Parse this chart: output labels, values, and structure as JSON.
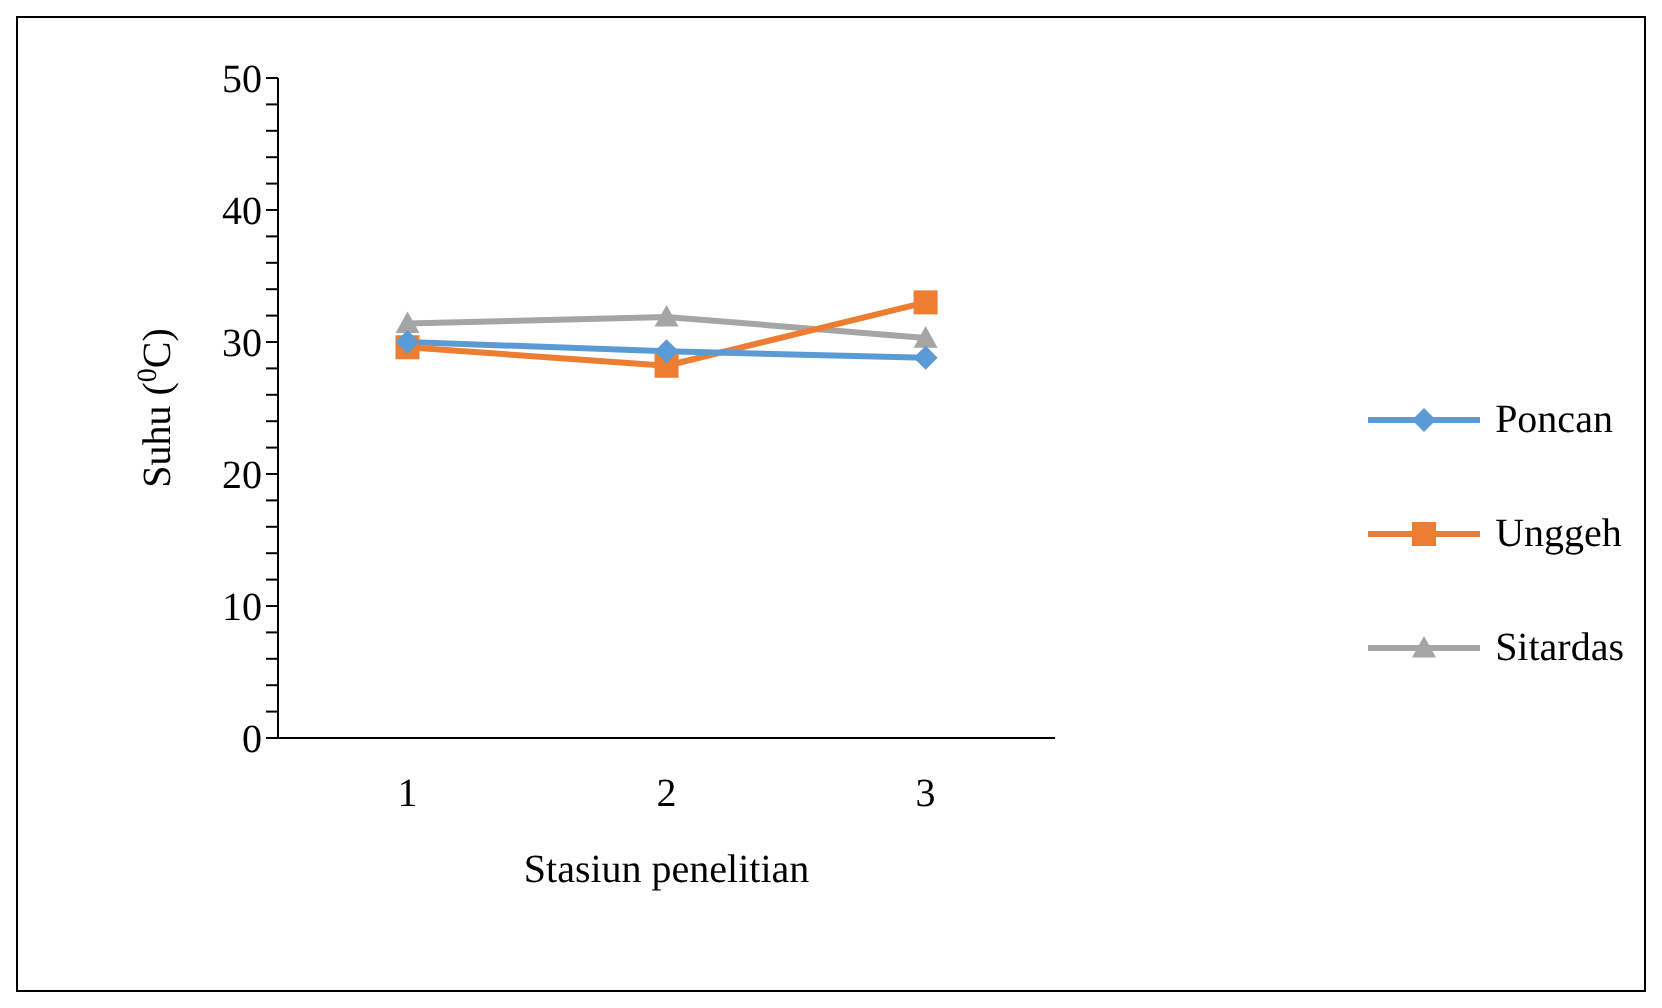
{
  "chart_data": {
    "type": "line",
    "xlabel": "Stasiun penelitian",
    "ylabel": "Suhu ($^{0}$C)",
    "categories": [
      "1",
      "2",
      "3"
    ],
    "series": [
      {
        "name": "Poncan",
        "color": "#5b9bd5",
        "marker": "diamond",
        "values": [
          30.0,
          29.3,
          28.8
        ]
      },
      {
        "name": "Unggeh",
        "color": "#ed7d31",
        "marker": "square",
        "values": [
          29.6,
          28.2,
          33.0
        ]
      },
      {
        "name": "Sitardas",
        "color": "#a5a5a5",
        "marker": "triangle",
        "values": [
          31.4,
          31.9,
          30.3
        ]
      }
    ],
    "ylim": [
      0,
      50
    ],
    "yticks": [
      0,
      {
        "value": 2,
        "label": null
      },
      {
        "value": 4,
        "label": null
      },
      {
        "value": 6,
        "label": null
      },
      {
        "value": 8,
        "label": null
      },
      10,
      {
        "value": 12,
        "label": null
      },
      {
        "value": 14,
        "label": null
      },
      {
        "value": 16,
        "label": null
      },
      {
        "value": 18,
        "label": null
      },
      20,
      {
        "value": 22,
        "label": null
      },
      {
        "value": 24,
        "label": null
      },
      {
        "value": 26,
        "label": null
      },
      {
        "value": 28,
        "label": null
      },
      30,
      {
        "value": 32,
        "label": null
      },
      {
        "value": 34,
        "label": null
      },
      {
        "value": 36,
        "label": null
      },
      {
        "value": 38,
        "label": null
      },
      40,
      {
        "value": 42,
        "label": null
      },
      {
        "value": 44,
        "label": null
      },
      {
        "value": 46,
        "label": null
      },
      {
        "value": 48,
        "label": null
      },
      50
    ],
    "grid": false,
    "legend": "right",
    "line_style": "solid"
  }
}
